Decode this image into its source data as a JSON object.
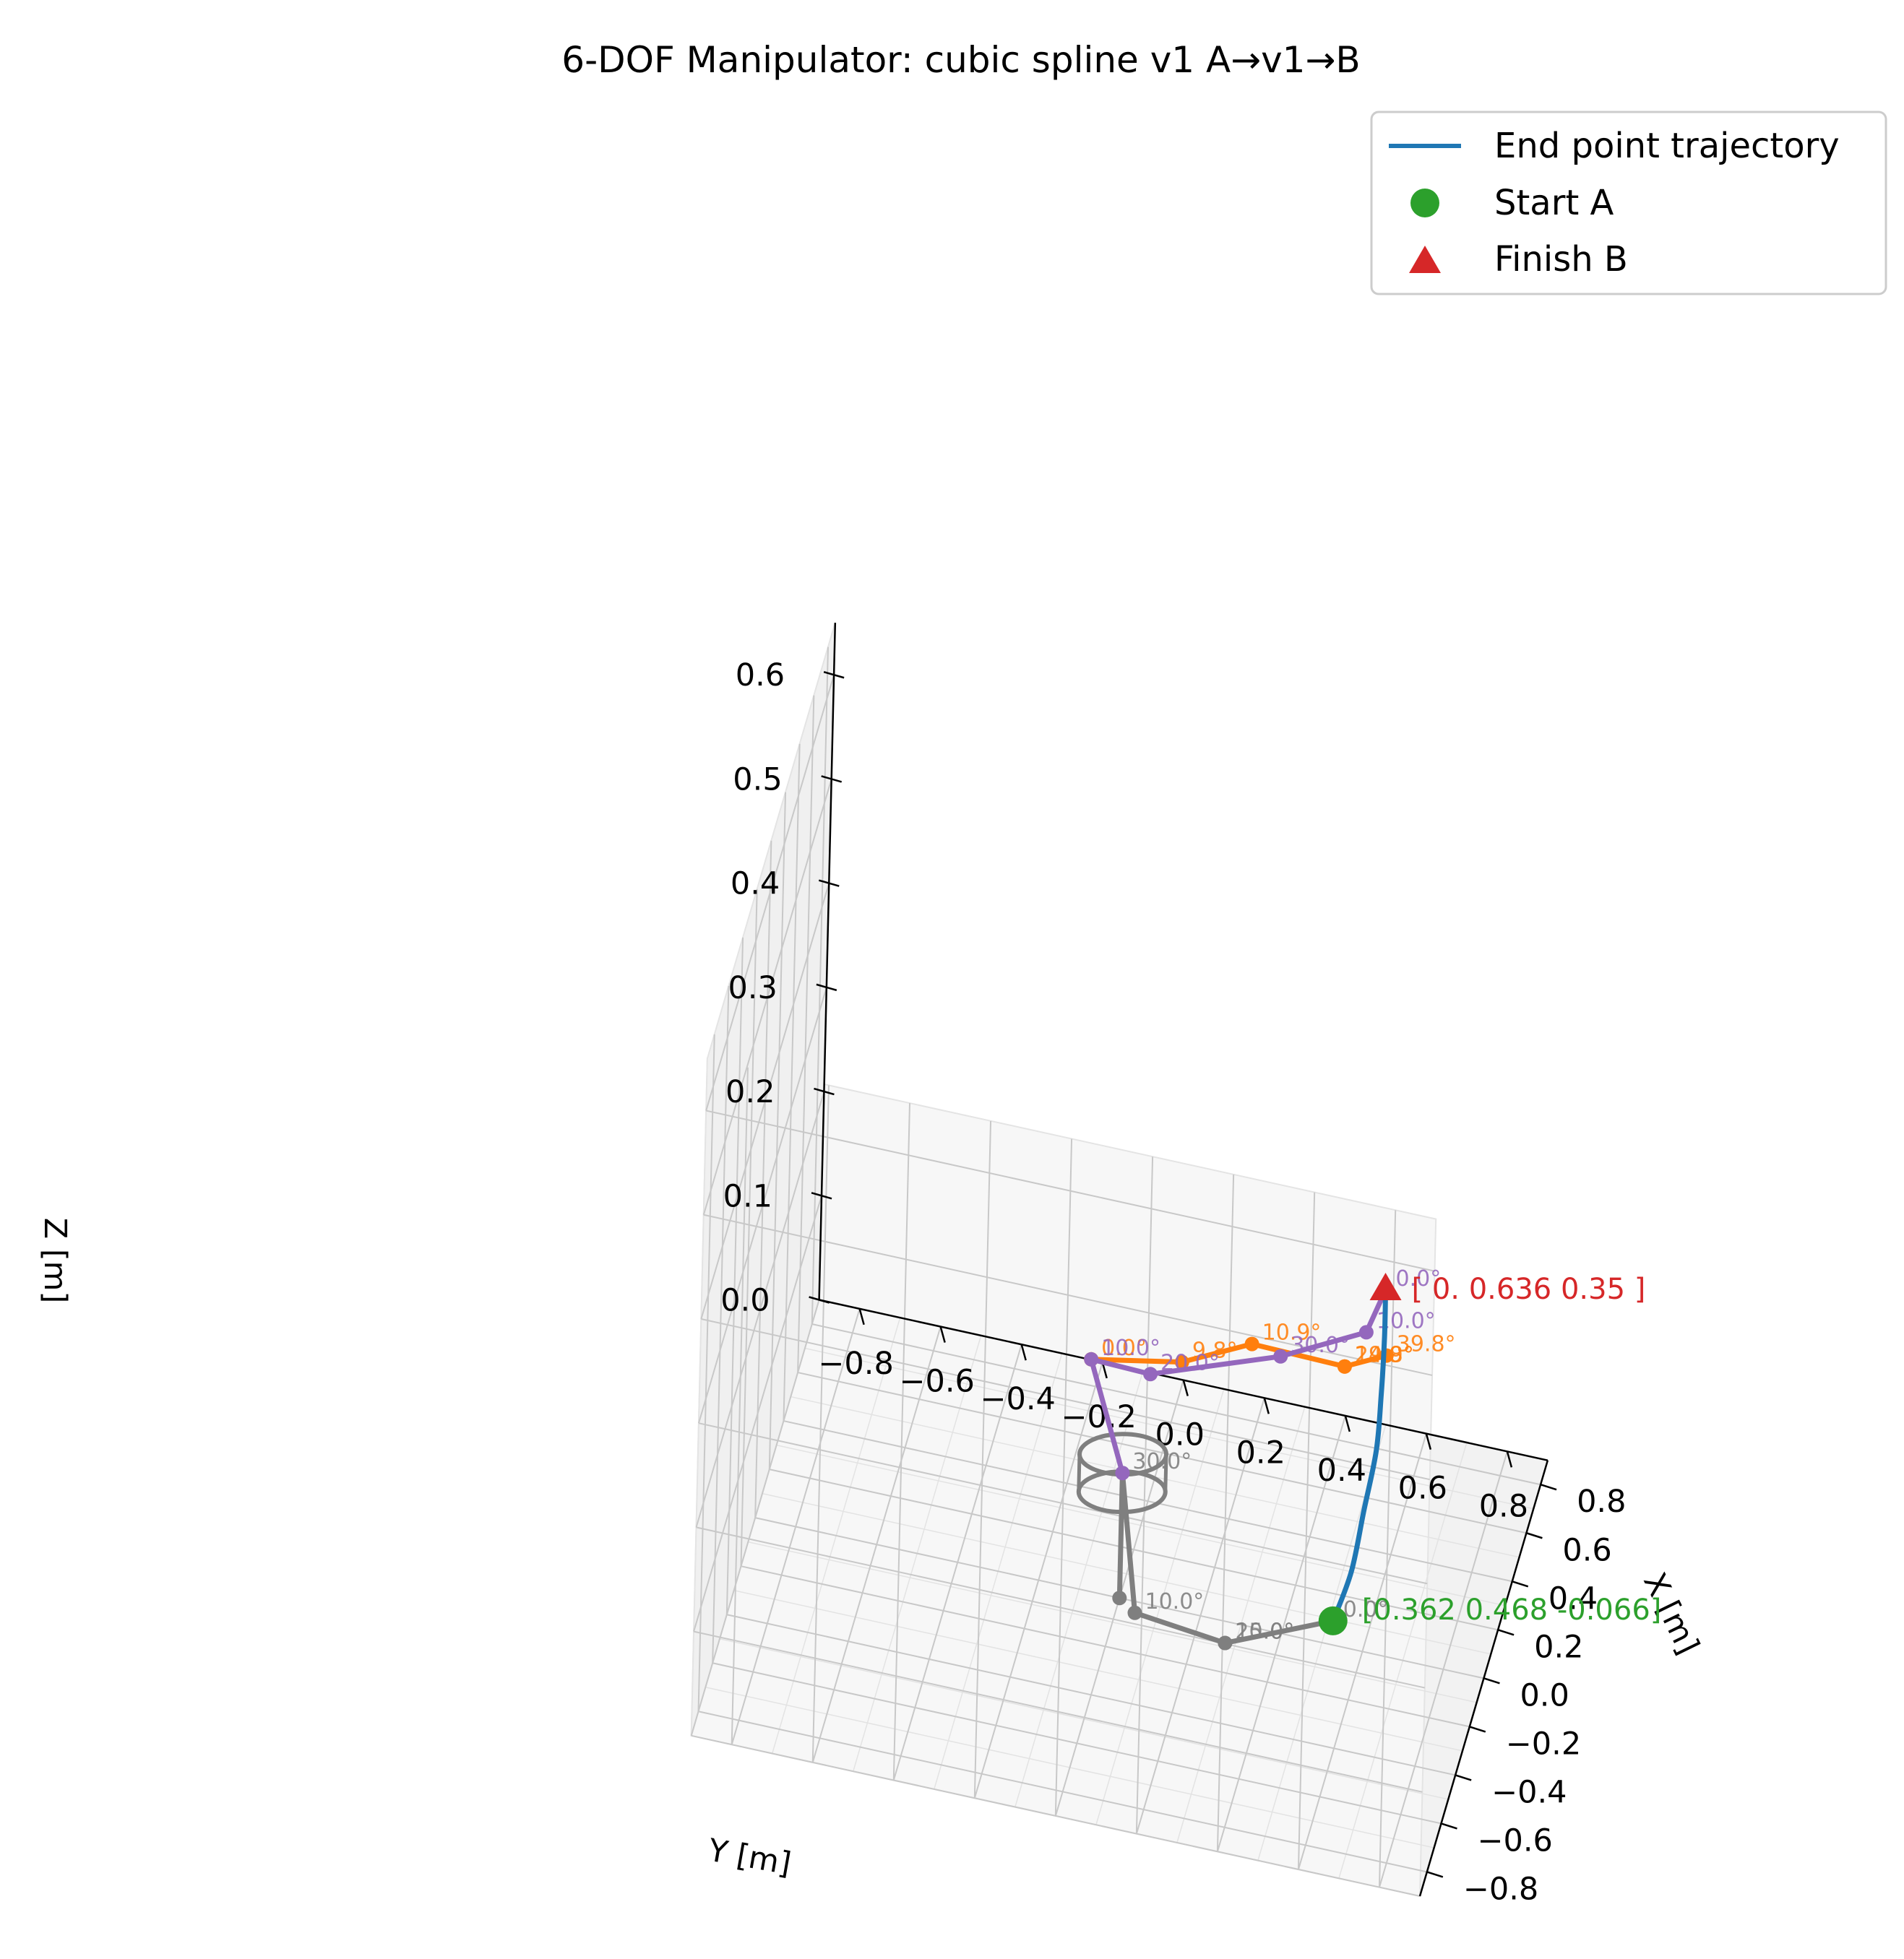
{
  "chart_data": {
    "type": "line",
    "title": "6-DOF Manipulator: cubic spline v1 A→v1→B",
    "xlabel": "X [m]",
    "ylabel": "Y [m]",
    "zlabel": "Z [m]",
    "x_ticks": [
      "−0.8",
      "−0.6",
      "−0.4",
      "−0.2",
      "0.0",
      "0.2",
      "0.4",
      "0.6",
      "0.8"
    ],
    "y_ticks": [
      "−0.8",
      "−0.6",
      "−0.4",
      "−0.2",
      "0.0",
      "0.2",
      "0.4",
      "0.6",
      "0.8"
    ],
    "z_ticks": [
      "0.0",
      "0.1",
      "0.2",
      "0.3",
      "0.4",
      "0.5",
      "0.6"
    ],
    "xlim": [
      -0.9,
      0.9
    ],
    "ylim": [
      -0.9,
      0.9
    ],
    "zlim": [
      0,
      0.65
    ],
    "grid": true,
    "legend_position": "top-right",
    "legend": [
      {
        "label": "End point trajectory",
        "marker": "line",
        "color": "#1f77b4"
      },
      {
        "label": "Start A",
        "marker": "circle",
        "color": "#2ca02c"
      },
      {
        "label": "Finish B",
        "marker": "triangle",
        "color": "#d62728"
      }
    ],
    "start_point": {
      "x": 0.362,
      "y": 0.468,
      "z": -0.066,
      "label": "[0.362  0.468 -0.066]",
      "color": "#2ca02c"
    },
    "finish_point": {
      "x": 0.0,
      "y": 0.636,
      "z": 0.35,
      "label": "[ 0.     0.636  0.35 ]",
      "color": "#d62728"
    },
    "trajectory": {
      "name": "End point trajectory",
      "color": "#1f77b4",
      "points": [
        {
          "x": 0.362,
          "y": 0.468,
          "z": -0.066
        },
        {
          "x": 0.3,
          "y": 0.52,
          "z": 0.0
        },
        {
          "x": 0.22,
          "y": 0.56,
          "z": 0.08
        },
        {
          "x": 0.14,
          "y": 0.6,
          "z": 0.16
        },
        {
          "x": 0.07,
          "y": 0.62,
          "z": 0.23
        },
        {
          "x": 0.02,
          "y": 0.633,
          "z": 0.3
        },
        {
          "x": 0.0,
          "y": 0.636,
          "z": 0.35
        }
      ]
    },
    "arm_poses": [
      {
        "color": "#7f7f7f",
        "joints": [
          {
            "x": 0.0,
            "y": 0.0,
            "z": 0.0,
            "label": ""
          },
          {
            "x": 0.0,
            "y": 0.0,
            "z": 0.12,
            "label": "30.0°"
          },
          {
            "x": 0.24,
            "y": 0.0,
            "z": -0.07,
            "label": "10.0°"
          },
          {
            "x": 0.2,
            "y": 0.23,
            "z": -0.07,
            "label": "20.0°"
          },
          {
            "x": 0.2,
            "y": 0.23,
            "z": -0.07,
            "label": "15.0°"
          },
          {
            "x": 0.362,
            "y": 0.468,
            "z": -0.066,
            "label": "0.0°"
          }
        ],
        "gripper": {
          "x": 0.0,
          "y": 0.0,
          "z": 0.12
        }
      },
      {
        "color": "#ff7f0e",
        "joints": [
          {
            "x": -0.52,
            "y": 0.0,
            "z": 0.35,
            "label": "0.0°"
          },
          {
            "x": -0.25,
            "y": 0.18,
            "z": 0.3,
            "label": "9.8°"
          },
          {
            "x": -0.12,
            "y": 0.33,
            "z": 0.3,
            "label": "10.9°"
          },
          {
            "x": -0.25,
            "y": 0.58,
            "z": 0.33,
            "label": "29.8°"
          },
          {
            "x": -0.25,
            "y": 0.58,
            "z": 0.33,
            "label": "14.9°"
          },
          {
            "x": -0.05,
            "y": 0.65,
            "z": 0.3,
            "label": "39.8°"
          }
        ]
      },
      {
        "color": "#9467bd",
        "joints": [
          {
            "x": 0.0,
            "y": 0.0,
            "z": 0.12,
            "label": ""
          },
          {
            "x": -0.52,
            "y": 0.0,
            "z": 0.35,
            "label": "10.0°"
          },
          {
            "x": -0.73,
            "y": 0.18,
            "z": 0.4,
            "label": "20.0°"
          },
          {
            "x": -0.55,
            "y": 0.47,
            "z": 0.4,
            "label": "30.0°"
          },
          {
            "x": -0.18,
            "y": 0.62,
            "z": 0.35,
            "label": "10.0°"
          },
          {
            "x": 0.0,
            "y": 0.636,
            "z": 0.35,
            "label": "0.0°"
          }
        ]
      }
    ]
  }
}
